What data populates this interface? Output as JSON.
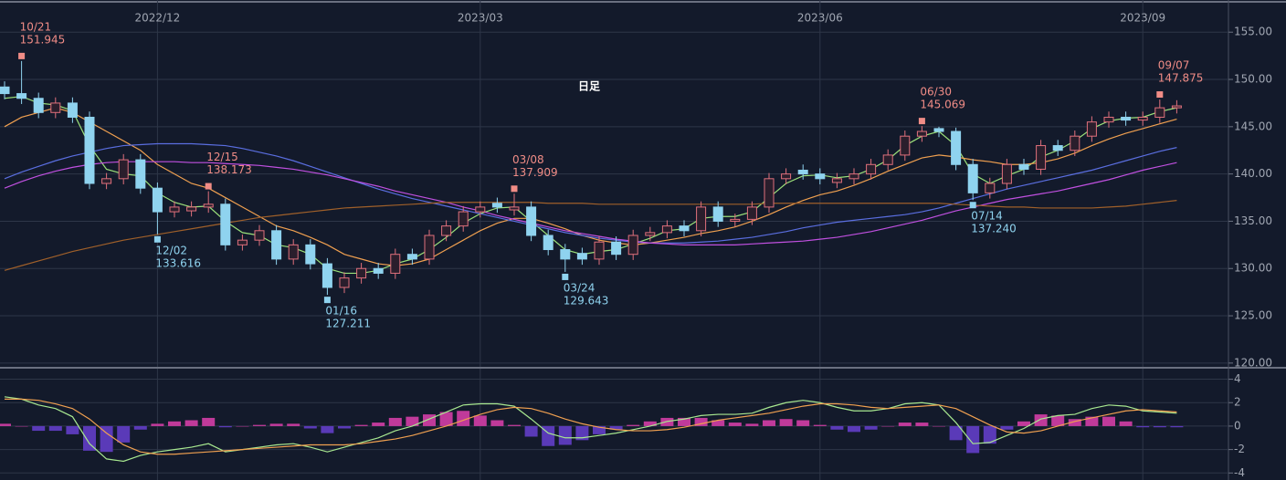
{
  "chart_data": [
    {
      "type": "candlestick",
      "categories": [
        null,
        null,
        null,
        null,
        null,
        null,
        null,
        null,
        null,
        "2022/12",
        null,
        null,
        null,
        null,
        null,
        null,
        null,
        null,
        null,
        null,
        null,
        null,
        null,
        null,
        null,
        null,
        null,
        null,
        "2023/03",
        null,
        null,
        null,
        null,
        null,
        null,
        null,
        null,
        null,
        null,
        null,
        null,
        null,
        null,
        null,
        null,
        null,
        null,
        null,
        "2023/06",
        null,
        null,
        null,
        null,
        null,
        null,
        null,
        null,
        null,
        null,
        null,
        null,
        null,
        null,
        null,
        null,
        null,
        null,
        "2023/09",
        null,
        null
      ],
      "open": [
        149.2,
        148.5,
        148,
        146.5,
        147.5,
        146,
        139,
        139.5,
        141.5,
        138.5,
        136,
        136.1,
        136.5,
        136.8,
        132.5,
        133,
        134,
        131,
        132.5,
        130.5,
        128,
        129,
        130,
        129.5,
        131.5,
        131,
        133.5,
        134.5,
        136,
        136.9,
        136.2,
        136.5,
        133.5,
        132,
        131.6,
        131,
        132.8,
        131.5,
        133.5,
        133.8,
        134.5,
        134,
        136.5,
        135,
        135.2,
        136.5,
        139.5,
        140.4,
        140,
        139.1,
        139.5,
        140,
        141,
        142,
        144,
        144.8,
        144.5,
        141,
        138,
        139,
        141,
        140.5,
        143,
        142.5,
        144,
        145.5,
        146,
        145.7,
        146,
        147
      ],
      "high": [
        149.8,
        151.945,
        148.6,
        148.1,
        148.1,
        146.6,
        140.1,
        142.1,
        142.1,
        139.1,
        137.1,
        137.1,
        138.173,
        137.4,
        133.6,
        134.6,
        134.6,
        133.1,
        133.1,
        131.1,
        129.6,
        130.6,
        130.6,
        132.1,
        132.1,
        134.1,
        135.1,
        136.6,
        137.1,
        137.5,
        137.909,
        137.1,
        134.1,
        132.6,
        132.2,
        133.4,
        133.4,
        134.1,
        134.4,
        135.1,
        135.1,
        137.1,
        137.1,
        135.8,
        137.1,
        140.1,
        140.6,
        141,
        140.6,
        140.1,
        140.6,
        141.6,
        142.6,
        144.6,
        145.069,
        145,
        144.9,
        141.6,
        139.6,
        141.6,
        141.6,
        143.6,
        143.6,
        144.6,
        146.1,
        146.6,
        146.6,
        146.6,
        147.875,
        147.8
      ],
      "low": [
        147.9,
        147.4,
        145.9,
        145.9,
        145.4,
        138.4,
        138.4,
        138.9,
        137.9,
        133.616,
        135.4,
        135.5,
        135.9,
        131.9,
        131.9,
        132.4,
        130.4,
        130.4,
        129.9,
        127.211,
        127.4,
        128.4,
        128.9,
        128.9,
        130.4,
        130.4,
        132.9,
        133.9,
        135.4,
        135.9,
        135.6,
        132.9,
        131.4,
        129.643,
        130.4,
        130.4,
        130.9,
        130.9,
        132.9,
        133.2,
        133.4,
        133.4,
        134.4,
        134.4,
        134.6,
        135.9,
        138.9,
        139.4,
        138.9,
        138.5,
        138.9,
        139.4,
        140.4,
        141.4,
        143.4,
        143.9,
        140.4,
        137.24,
        137.4,
        138.4,
        139.9,
        139.9,
        141.9,
        141.9,
        143.4,
        144.9,
        145.1,
        145.1,
        145.4,
        146.4
      ],
      "close": [
        148.5,
        148,
        146.5,
        147.5,
        146,
        139,
        139.5,
        141.5,
        138.5,
        136,
        136.5,
        136.5,
        136.8,
        132.5,
        133,
        134,
        131,
        132.5,
        130.5,
        128,
        129,
        130,
        129.5,
        131.5,
        131,
        133.5,
        134.5,
        136,
        136.5,
        136.5,
        136.5,
        133.5,
        132,
        131,
        131,
        132.8,
        131.5,
        133.5,
        133.8,
        134.5,
        134,
        136.5,
        135,
        135.2,
        136.5,
        139.5,
        140,
        140,
        139.5,
        139.5,
        140,
        141,
        142,
        144,
        144.5,
        144.5,
        141,
        138,
        139,
        141,
        140.5,
        143,
        142.5,
        144,
        145.5,
        146,
        145.7,
        146,
        147,
        147.2
      ],
      "up_color": "#e0707c",
      "down_color": "#8fd3ef",
      "ylim": [
        119.6,
        158.4
      ],
      "yticks": [
        {
          "value": 155,
          "label": "155.00"
        },
        {
          "value": 150,
          "label": "150.00"
        },
        {
          "value": 145,
          "label": "145.00"
        },
        {
          "value": 140,
          "label": "140.00"
        },
        {
          "value": 135,
          "label": "135.00"
        },
        {
          "value": 130,
          "label": "130.00"
        },
        {
          "value": 125,
          "label": "125.00"
        },
        {
          "value": 120,
          "label": "120.00"
        }
      ],
      "grid": true,
      "overlay_text": "日足",
      "annotations": [
        {
          "date": "10/21",
          "value": 151.945,
          "label": "151.945"
        },
        {
          "date": "12/02",
          "value": 133.616,
          "label": "133.616"
        },
        {
          "date": "12/15",
          "value": 138.173,
          "label": "138.173"
        },
        {
          "date": "01/16",
          "value": 127.211,
          "label": "127.211"
        },
        {
          "date": "03/08",
          "value": 137.909,
          "label": "137.909"
        },
        {
          "date": "03/24",
          "value": 129.643,
          "label": "129.643"
        },
        {
          "date": "06/30",
          "value": 145.069,
          "label": "145.069"
        },
        {
          "date": "07/14",
          "value": 137.24,
          "label": "137.240"
        },
        {
          "date": "09/07",
          "value": 147.875,
          "label": "147.875"
        }
      ],
      "series": [
        {
          "color": "#9be07a",
          "values": [
            148,
            148.2,
            147.5,
            147.3,
            146.7,
            143,
            140.5,
            140,
            139.8,
            138,
            137,
            136.5,
            136.6,
            135,
            133.8,
            133.5,
            132.5,
            132.2,
            131.5,
            130,
            129.5,
            129.5,
            129.8,
            130.5,
            131,
            132,
            133.3,
            134.8,
            135.8,
            136.4,
            136.5,
            135,
            133.5,
            132,
            131.5,
            131.8,
            132,
            132.6,
            133.2,
            134,
            134.2,
            135.3,
            135.5,
            135.5,
            136,
            137.5,
            139,
            139.8,
            139.9,
            139.6,
            139.8,
            140.5,
            141.5,
            143,
            144,
            144.5,
            143,
            140,
            139,
            139.8,
            140.5,
            141.8,
            142.5,
            143.5,
            144.8,
            145.6,
            145.9,
            146,
            146.6,
            147
          ]
        },
        {
          "color": "#f0a050",
          "values": [
            145,
            146,
            146.5,
            147,
            146.5,
            145.5,
            144.5,
            143.5,
            142.5,
            141,
            140,
            139,
            138.5,
            137.5,
            136.5,
            135.5,
            134.5,
            134,
            133.3,
            132.5,
            131.5,
            131,
            130.5,
            130.3,
            130.5,
            131,
            132,
            133,
            134,
            134.8,
            135.3,
            135.3,
            134.8,
            134.2,
            133.5,
            133,
            132.7,
            132.5,
            132.7,
            133,
            133.3,
            133.7,
            134,
            134.4,
            135,
            135.7,
            136.5,
            137.2,
            137.8,
            138.2,
            138.8,
            139.5,
            140.3,
            141,
            141.7,
            142,
            141.8,
            141.5,
            141.3,
            141,
            141,
            141.2,
            141.6,
            142.2,
            143,
            143.7,
            144.3,
            144.8,
            145.3,
            145.8
          ]
        },
        {
          "color": "#5a6ee0",
          "values": [
            139.5,
            140.2,
            140.8,
            141.4,
            141.9,
            142.3,
            142.7,
            143,
            143.1,
            143.2,
            143.2,
            143.2,
            143.1,
            143,
            142.7,
            142.3,
            141.9,
            141.4,
            140.8,
            140.2,
            139.6,
            139,
            138.4,
            137.9,
            137.4,
            137,
            136.6,
            136.2,
            135.8,
            135.4,
            135,
            134.6,
            134.2,
            133.8,
            133.5,
            133.2,
            133,
            132.8,
            132.7,
            132.7,
            132.7,
            132.8,
            132.9,
            133.1,
            133.3,
            133.6,
            133.9,
            134.3,
            134.6,
            134.9,
            135.1,
            135.3,
            135.5,
            135.7,
            136,
            136.4,
            136.9,
            137.4,
            137.9,
            138.4,
            138.8,
            139.2,
            139.6,
            140,
            140.4,
            140.9,
            141.4,
            141.9,
            142.4,
            142.8
          ]
        },
        {
          "color": "#c050e0",
          "values": [
            138.5,
            139.2,
            139.8,
            140.3,
            140.7,
            141,
            141.2,
            141.3,
            141.3,
            141.3,
            141.3,
            141.2,
            141.2,
            141.1,
            141,
            140.9,
            140.7,
            140.5,
            140.2,
            139.9,
            139.5,
            139.1,
            138.7,
            138.2,
            137.8,
            137.4,
            137,
            136.5,
            136.1,
            135.6,
            135.2,
            134.8,
            134.4,
            134,
            133.7,
            133.4,
            133.1,
            132.9,
            132.7,
            132.6,
            132.5,
            132.5,
            132.5,
            132.5,
            132.6,
            132.7,
            132.8,
            132.9,
            133.1,
            133.3,
            133.6,
            133.9,
            134.3,
            134.7,
            135.1,
            135.6,
            136.1,
            136.5,
            136.9,
            137.3,
            137.6,
            137.9,
            138.2,
            138.6,
            139,
            139.4,
            139.9,
            140.4,
            140.8,
            141.2
          ]
        },
        {
          "color": "#a0602a",
          "values": [
            129.8,
            130.3,
            130.8,
            131.3,
            131.8,
            132.2,
            132.6,
            133,
            133.3,
            133.6,
            133.9,
            134.2,
            134.5,
            134.8,
            135.1,
            135.4,
            135.6,
            135.8,
            136,
            136.2,
            136.4,
            136.5,
            136.6,
            136.7,
            136.8,
            136.9,
            137,
            137,
            137,
            137,
            137,
            137,
            136.9,
            136.9,
            136.9,
            136.8,
            136.8,
            136.8,
            136.8,
            136.8,
            136.8,
            136.8,
            136.8,
            136.8,
            136.8,
            136.9,
            136.9,
            136.9,
            136.9,
            136.9,
            136.9,
            136.9,
            136.9,
            136.9,
            136.9,
            136.9,
            136.8,
            136.7,
            136.6,
            136.5,
            136.5,
            136.4,
            136.4,
            136.4,
            136.4,
            136.5,
            136.6,
            136.8,
            137,
            137.2
          ]
        }
      ]
    },
    {
      "type": "macd",
      "ylim": [
        -4.6,
        4.9
      ],
      "yticks": [
        4,
        2,
        0,
        -2,
        -4
      ],
      "grid": true,
      "histogram": {
        "up_color": "#c03a9a",
        "down_color": "#5a3ab8",
        "values": [
          0.2,
          0,
          -0.4,
          -0.4,
          -0.7,
          -2.1,
          -2.2,
          -1.4,
          -0.3,
          0.2,
          0.4,
          0.5,
          0.7,
          -0.1,
          0,
          0.1,
          0.2,
          0.2,
          -0.2,
          -0.6,
          -0.2,
          0.1,
          0.3,
          0.7,
          0.8,
          1,
          1.2,
          1.3,
          0.9,
          0.5,
          0.1,
          -0.9,
          -1.7,
          -1.6,
          -1.2,
          -0.7,
          -0.3,
          0.1,
          0.4,
          0.7,
          0.7,
          0.7,
          0.5,
          0.3,
          0.2,
          0.5,
          0.6,
          0.5,
          0.1,
          -0.3,
          -0.5,
          -0.3,
          0,
          0.3,
          0.3,
          0,
          -1.2,
          -2.3,
          -1.5,
          -0.3,
          0.4,
          1,
          0.9,
          0.6,
          0.8,
          0.8,
          0.4,
          -0.1,
          -0.1,
          -0.1
        ]
      },
      "series": [
        {
          "color": "#a8e890",
          "values": [
            2.5,
            2.3,
            1.8,
            1.5,
            0.8,
            -1.5,
            -2.8,
            -3,
            -2.5,
            -2.2,
            -2,
            -1.8,
            -1.5,
            -2.2,
            -2,
            -1.8,
            -1.6,
            -1.5,
            -1.8,
            -2.2,
            -1.8,
            -1.4,
            -1,
            -0.4,
            0,
            0.6,
            1.2,
            1.8,
            1.9,
            1.9,
            1.7,
            0.6,
            -0.6,
            -1,
            -1,
            -0.8,
            -0.6,
            -0.3,
            0,
            0.4,
            0.6,
            0.9,
            1,
            1,
            1.1,
            1.6,
            2,
            2.2,
            2,
            1.6,
            1.3,
            1.3,
            1.5,
            1.9,
            2,
            1.8,
            0.3,
            -1.5,
            -1.4,
            -0.8,
            -0.2,
            0.6,
            0.9,
            1,
            1.5,
            1.8,
            1.7,
            1.3,
            1.2,
            1.1
          ]
        },
        {
          "color": "#f0a050",
          "values": [
            2.3,
            2.3,
            2.2,
            1.9,
            1.5,
            0.6,
            -0.6,
            -1.6,
            -2.2,
            -2.4,
            -2.4,
            -2.3,
            -2.2,
            -2.1,
            -2,
            -1.9,
            -1.8,
            -1.7,
            -1.6,
            -1.6,
            -1.6,
            -1.5,
            -1.3,
            -1.1,
            -0.8,
            -0.4,
            0,
            0.5,
            1,
            1.4,
            1.6,
            1.5,
            1.1,
            0.6,
            0.2,
            -0.1,
            -0.3,
            -0.4,
            -0.4,
            -0.3,
            -0.1,
            0.2,
            0.5,
            0.7,
            0.9,
            1.1,
            1.4,
            1.7,
            1.9,
            1.9,
            1.8,
            1.6,
            1.5,
            1.6,
            1.7,
            1.8,
            1.5,
            0.8,
            0.1,
            -0.5,
            -0.6,
            -0.4,
            0,
            0.4,
            0.7,
            1,
            1.3,
            1.4,
            1.3,
            1.2
          ]
        }
      ]
    }
  ]
}
